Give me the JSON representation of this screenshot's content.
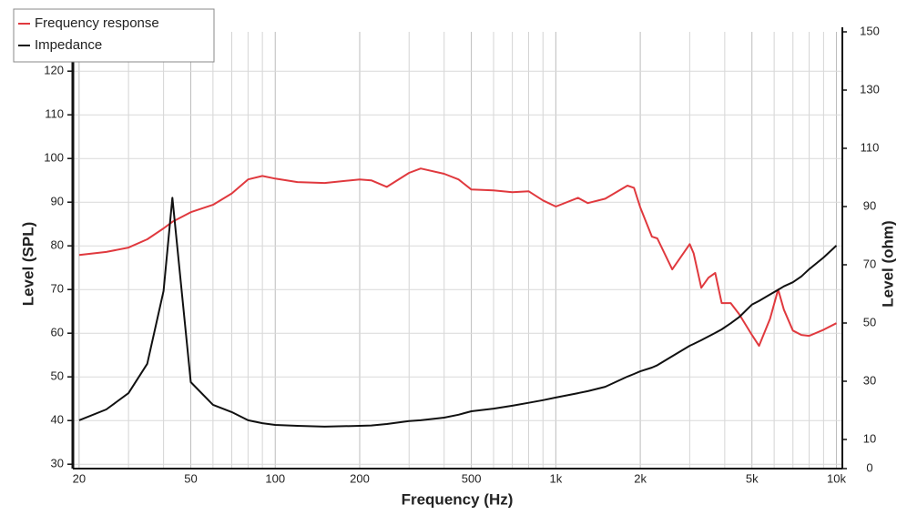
{
  "chart_data": {
    "type": "line",
    "xlabel": "Frequency (Hz)",
    "ylabel": "Level (SPL)",
    "y2label": "Level (ohm)",
    "xscale": "log",
    "grid": true,
    "legend": "upper left",
    "xlim": [
      19,
      10500
    ],
    "xticks": [
      20,
      50,
      100,
      200,
      500,
      {
        "value": 1000,
        "label": "1k"
      },
      {
        "value": 2000,
        "label": "2k"
      },
      {
        "value": 5000,
        "label": "5k"
      },
      {
        "value": 10000,
        "label": "10k"
      }
    ],
    "xminorticks": [
      30,
      40,
      60,
      70,
      80,
      90,
      300,
      400,
      600,
      700,
      800,
      900,
      3000,
      4000,
      6000,
      7000,
      8000,
      9000
    ],
    "ylim": [
      29,
      129
    ],
    "yticks": [
      30,
      40,
      50,
      60,
      70,
      80,
      90,
      100,
      110,
      120
    ],
    "y2lim": [
      0,
      150
    ],
    "y2ticks": [
      0,
      10,
      30,
      50,
      70,
      90,
      110,
      130,
      150
    ],
    "x": [
      20,
      25,
      30,
      35,
      40,
      43,
      50,
      60,
      70,
      80,
      90,
      100,
      120,
      150,
      200,
      220,
      250,
      300,
      330,
      400,
      450,
      500,
      600,
      700,
      800,
      900,
      1000,
      1200,
      1300,
      1500,
      1800,
      1900,
      2000,
      2200,
      2300,
      2600,
      3000,
      3100,
      3300,
      3500,
      3700,
      3900,
      4200,
      4500,
      5000,
      5300,
      5800,
      6200,
      6500,
      7000,
      7500,
      8000,
      9000,
      10000
    ],
    "series": [
      {
        "name": "Frequency response",
        "color": "#e0393e",
        "values": [
          77.9,
          78.6,
          79.6,
          81.5,
          84,
          85.5,
          87.7,
          89.4,
          92,
          95.2,
          96,
          95.4,
          94.6,
          94.4,
          95.2,
          95,
          93.5,
          96.7,
          97.7,
          96.5,
          95.2,
          92.9,
          92.7,
          92.3,
          92.5,
          90.4,
          89,
          91,
          89.8,
          90.8,
          93.8,
          93.3,
          88.8,
          82.1,
          81.7,
          74.6,
          80.4,
          78.3,
          70.4,
          72.7,
          73.8,
          66.9,
          66.9,
          64.4,
          59.6,
          57.1,
          63.3,
          70,
          65.4,
          60.6,
          59.6,
          59.4,
          60.8,
          62.3
        ]
      },
      {
        "name": "Impedance",
        "color": "#111111",
        "axis": "y2",
        "values": [
          16.6,
          20.3,
          25.9,
          36,
          61,
          93,
          29.7,
          21.9,
          19.4,
          16.6,
          15.6,
          15,
          14.7,
          14.4,
          14.7,
          14.8,
          15.3,
          16.3,
          16.6,
          17.5,
          18.5,
          19.7,
          20.6,
          21.6,
          22.6,
          23.5,
          24.4,
          25.9,
          26.6,
          28.1,
          31.6,
          32.5,
          33.4,
          34.7,
          35.5,
          38.6,
          42.2,
          42.8,
          44.1,
          45.4,
          46.6,
          47.8,
          49.9,
          52,
          56.3,
          57.6,
          59.8,
          61.4,
          62.6,
          64,
          66,
          68.5,
          72.5,
          76.6
        ]
      }
    ]
  }
}
